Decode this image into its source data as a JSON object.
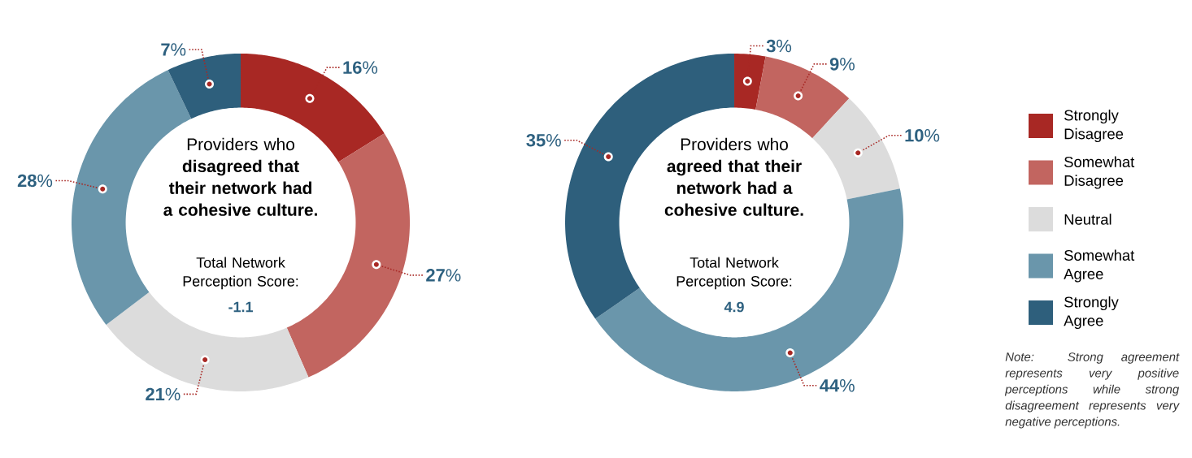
{
  "chart_data": [
    {
      "type": "donut",
      "title": "Providers who **disagreed that their network had a cohesive culture.**",
      "subtitle": "Total Network Perception Score:",
      "categories": [
        null,
        null,
        null,
        null,
        null
      ],
      "values": [
        16,
        27,
        21,
        28,
        7
      ],
      "value_labels": [
        "**16**%",
        "**27**%",
        "**21**%",
        "**28**%",
        "**7**%"
      ],
      "colors": [
        "#a82824",
        "#c26560",
        "#dcdcdc",
        "#6a96ab",
        "#2e5f7c"
      ],
      "annotations": [
        "-1.1"
      ]
    },
    {
      "type": "donut",
      "title": "Providers who **agreed that their network had a cohesive culture.**",
      "subtitle": "Total Network Perception Score:",
      "categories": [
        "Strongly Disagree",
        "Somewhat Disagree",
        "Neutral",
        "Somewhat Agree",
        "Strongly Agree"
      ],
      "values": [
        3,
        9,
        10,
        44,
        35
      ],
      "value_labels": [
        "**3**%",
        "**9**%",
        "**10**%",
        "**44**%",
        "**35**%"
      ],
      "colors": [
        "#a82824",
        "#c26560",
        "#dcdcdc",
        "#6a96ab",
        "#2e5f7c"
      ],
      "legend": "right",
      "annotations": [
        "4.9",
        "Note: Strong agreement represents very positive perceptions while strong disagreement represents very negative perceptions."
      ]
    }
  ]
}
